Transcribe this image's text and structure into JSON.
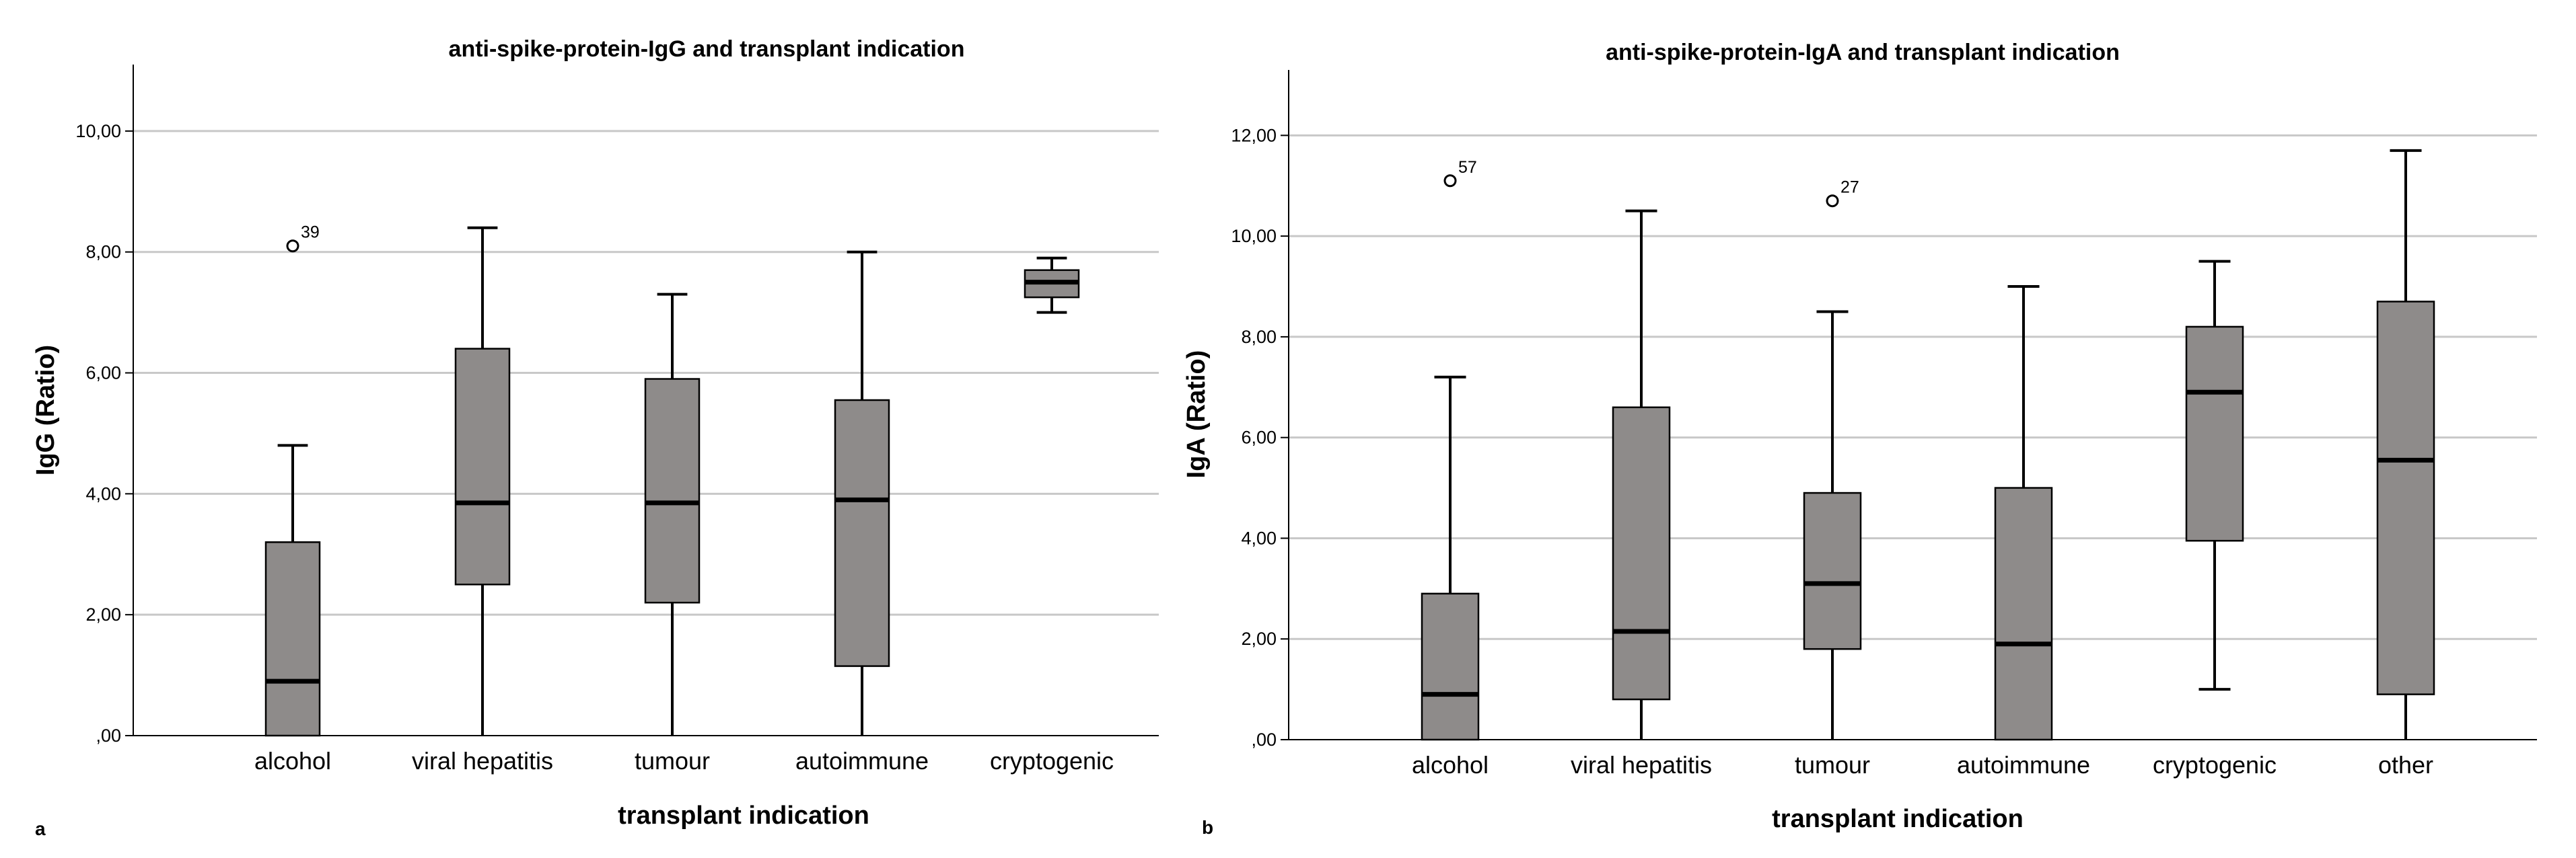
{
  "chart_data": [
    {
      "type": "box",
      "panel": "a",
      "title": "anti-spike-protein-IgG and transplant indication",
      "xlabel": "transplant indication",
      "ylabel": "IgG (Ratio)",
      "ylim": [
        0,
        11.1
      ],
      "yticks": [
        0,
        2,
        4,
        6,
        8,
        10
      ],
      "ytick_labels": [
        ",00",
        "2,00",
        "4,00",
        "6,00",
        "8,00",
        "10,00"
      ],
      "categories": [
        "alcohol",
        "viral hepatitis",
        "tumour",
        "autoimmune",
        "cryptogenic"
      ],
      "boxes": [
        {
          "min": 0,
          "q1": 0,
          "median": 0.9,
          "q3": 3.2,
          "max": 4.8,
          "outliers": [
            {
              "value": 8.1,
              "label": "39"
            }
          ]
        },
        {
          "min": 0,
          "q1": 2.5,
          "median": 3.85,
          "q3": 6.4,
          "max": 8.4,
          "outliers": []
        },
        {
          "min": 0,
          "q1": 2.2,
          "median": 3.85,
          "q3": 5.9,
          "max": 7.3,
          "outliers": []
        },
        {
          "min": 0,
          "q1": 1.15,
          "median": 3.9,
          "q3": 5.55,
          "max": 8.0,
          "outliers": []
        },
        {
          "min": 7.0,
          "q1": 7.25,
          "median": 7.5,
          "q3": 7.7,
          "max": 7.9,
          "outliers": []
        }
      ]
    },
    {
      "type": "box",
      "panel": "b",
      "title": "anti-spike-protein-IgA and transplant indication",
      "xlabel": "transplant indication",
      "ylabel": "IgA (Ratio)",
      "ylim": [
        0,
        13.3
      ],
      "yticks": [
        0,
        2,
        4,
        6,
        8,
        10,
        12
      ],
      "ytick_labels": [
        ",00",
        "2,00",
        "4,00",
        "6,00",
        "8,00",
        "10,00",
        "12,00"
      ],
      "categories": [
        "alcohol",
        "viral hepatitis",
        "tumour",
        "autoimmune",
        "cryptogenic",
        "other"
      ],
      "boxes": [
        {
          "min": 0,
          "q1": 0,
          "median": 0.9,
          "q3": 2.9,
          "max": 7.2,
          "outliers": [
            {
              "value": 11.1,
              "label": "57"
            }
          ]
        },
        {
          "min": 0,
          "q1": 0.8,
          "median": 2.15,
          "q3": 6.6,
          "max": 10.5,
          "outliers": []
        },
        {
          "min": 0,
          "q1": 1.8,
          "median": 3.1,
          "q3": 4.9,
          "max": 8.5,
          "outliers": [
            {
              "value": 10.7,
              "label": "27"
            }
          ]
        },
        {
          "min": 0,
          "q1": 0,
          "median": 1.9,
          "q3": 5.0,
          "max": 9.0,
          "outliers": []
        },
        {
          "min": 1.0,
          "q1": 3.95,
          "median": 6.9,
          "q3": 8.2,
          "max": 9.5,
          "outliers": []
        },
        {
          "min": 0,
          "q1": 0.9,
          "median": 5.55,
          "q3": 8.7,
          "max": 11.7,
          "outliers": []
        }
      ]
    }
  ]
}
